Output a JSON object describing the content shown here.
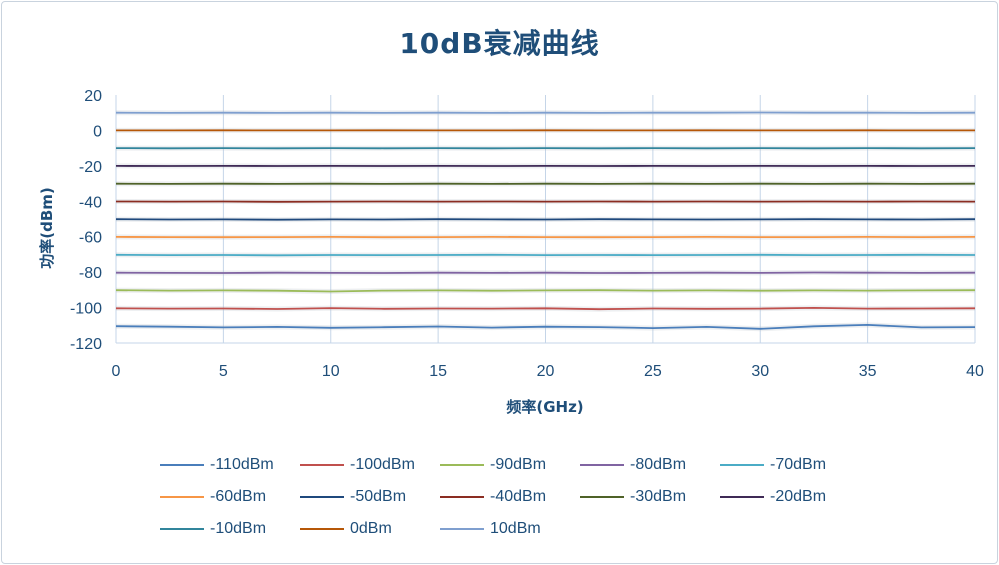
{
  "chart_data": {
    "type": "line",
    "title": "10dB衰减曲线",
    "xlabel": "频率(GHz)",
    "ylabel": "功率(dBm)",
    "xlim": [
      0,
      40
    ],
    "ylim": [
      -120,
      20
    ],
    "x_ticks": [
      "0",
      "5",
      "10",
      "15",
      "20",
      "25",
      "30",
      "35",
      "40"
    ],
    "y_ticks": [
      "20",
      "0",
      "-20",
      "-40",
      "-60",
      "-80",
      "-100",
      "-120"
    ],
    "grid": "vertical",
    "legend_position": "bottom",
    "x": [
      0,
      2.5,
      5,
      7.5,
      10,
      12.5,
      15,
      17.5,
      20,
      22.5,
      25,
      27.5,
      30,
      32.5,
      35,
      37.5,
      40
    ],
    "series": [
      {
        "name": "-110dBm",
        "color": "#4a7ebb",
        "values": [
          -110.5,
          -110.8,
          -111.2,
          -110.9,
          -111.4,
          -111.1,
          -110.7,
          -111.3,
          -110.8,
          -111.0,
          -111.6,
          -110.9,
          -112.0,
          -110.6,
          -109.8,
          -111.2,
          -111.0
        ]
      },
      {
        "name": "-100dBm",
        "color": "#c0504d",
        "values": [
          -100.4,
          -100.6,
          -100.5,
          -100.8,
          -100.3,
          -100.7,
          -100.5,
          -100.6,
          -100.4,
          -100.9,
          -100.5,
          -100.7,
          -100.6,
          -100.2,
          -100.6,
          -100.5,
          -100.4
        ]
      },
      {
        "name": "-90dBm",
        "color": "#9bbb59",
        "values": [
          -90.2,
          -90.4,
          -90.3,
          -90.5,
          -90.9,
          -90.4,
          -90.3,
          -90.5,
          -90.3,
          -90.2,
          -90.4,
          -90.3,
          -90.5,
          -90.3,
          -90.4,
          -90.3,
          -90.2
        ]
      },
      {
        "name": "-80dBm",
        "color": "#8064a2",
        "values": [
          -80.3,
          -80.4,
          -80.5,
          -80.3,
          -80.4,
          -80.5,
          -80.3,
          -80.4,
          -80.3,
          -80.5,
          -80.4,
          -80.3,
          -80.4,
          -80.2,
          -80.3,
          -80.4,
          -80.3
        ]
      },
      {
        "name": "-70dBm",
        "color": "#4bacc6",
        "values": [
          -70.2,
          -70.4,
          -70.3,
          -70.5,
          -70.3,
          -70.4,
          -70.3,
          -70.2,
          -70.4,
          -70.3,
          -70.4,
          -70.3,
          -70.2,
          -70.4,
          -70.3,
          -70.2,
          -70.3
        ]
      },
      {
        "name": "-60dBm",
        "color": "#f79646",
        "values": [
          -60.1,
          -60.2,
          -60.3,
          -60.2,
          -60.1,
          -60.3,
          -60.2,
          -60.1,
          -60.2,
          -60.3,
          -60.2,
          -60.1,
          -60.2,
          -60.2,
          -60.1,
          -60.2,
          -60.1
        ]
      },
      {
        "name": "-50dBm",
        "color": "#1f497d",
        "values": [
          -50.1,
          -50.3,
          -50.2,
          -50.4,
          -50.2,
          -50.3,
          -50.1,
          -50.2,
          -50.3,
          -50.1,
          -50.2,
          -50.3,
          -50.2,
          -50.1,
          -50.2,
          -50.3,
          -50.1
        ]
      },
      {
        "name": "-40dBm",
        "color": "#8b2d22",
        "values": [
          -40.1,
          -40.2,
          -40.1,
          -40.3,
          -40.2,
          -40.1,
          -40.2,
          -40.1,
          -40.2,
          -40.1,
          -40.2,
          -40.1,
          -40.2,
          -40.1,
          -40.2,
          -40.1,
          -40.2
        ]
      },
      {
        "name": "-30dBm",
        "color": "#4f6228",
        "values": [
          -30.1,
          -30.2,
          -30.1,
          -30.2,
          -30.1,
          -30.2,
          -30.1,
          -30.2,
          -30.1,
          -30.2,
          -30.1,
          -30.2,
          -30.1,
          -30.2,
          -30.1,
          -30.2,
          -30.1
        ]
      },
      {
        "name": "-20dBm",
        "color": "#3f2a56",
        "values": [
          -20.0,
          -20.1,
          -20.0,
          -20.1,
          -20.0,
          -20.1,
          -20.0,
          -20.1,
          -20.0,
          -20.1,
          -20.0,
          -20.1,
          -20.0,
          -20.1,
          -20.0,
          -20.1,
          -20.0
        ]
      },
      {
        "name": "-10dBm",
        "color": "#31859c",
        "values": [
          -10.0,
          -10.1,
          -10.0,
          -10.1,
          -10.0,
          -10.1,
          -10.0,
          -10.1,
          -10.0,
          -10.1,
          -10.0,
          -10.1,
          -10.0,
          -10.1,
          -10.0,
          -10.1,
          -10.0
        ]
      },
      {
        "name": "0dBm",
        "color": "#b65708",
        "values": [
          0.0,
          0.0,
          0.1,
          0.0,
          0.0,
          0.1,
          0.0,
          0.0,
          0.1,
          0.0,
          0.0,
          0.1,
          0.0,
          0.0,
          0.1,
          0.0,
          0.0
        ]
      },
      {
        "name": "10dBm",
        "color": "#7f9fcf",
        "values": [
          10.0,
          9.9,
          10.0,
          9.9,
          10.0,
          9.9,
          10.0,
          9.9,
          10.0,
          9.9,
          10.0,
          10.0,
          10.1,
          10.0,
          10.0,
          9.9,
          10.0
        ]
      }
    ]
  }
}
